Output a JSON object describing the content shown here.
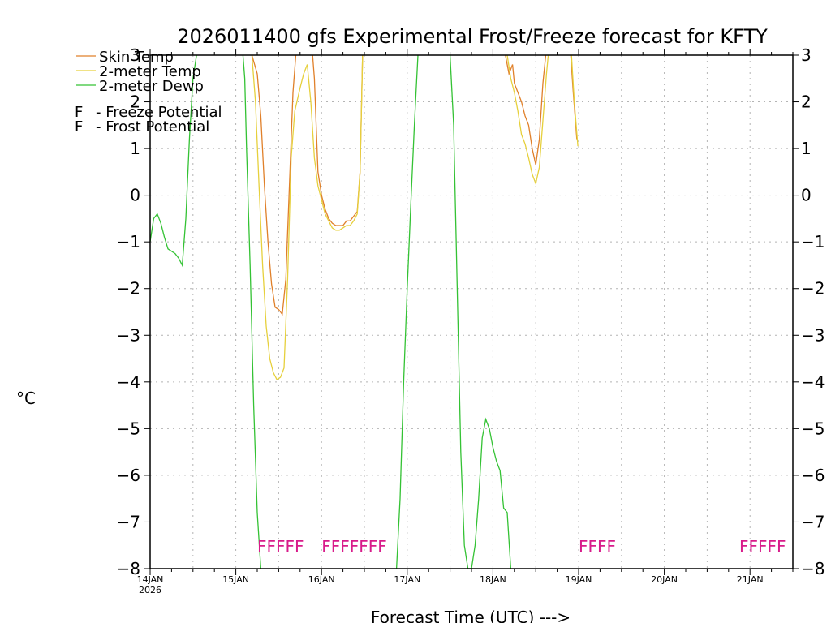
{
  "chart_data": {
    "type": "line",
    "title": "2026011400 gfs Experimental Frost/Freeze forecast for KFTY",
    "xlabel": "Forecast Time (UTC) --->",
    "ylabel": "°C",
    "ylim": [
      -8,
      3
    ],
    "yticks": [
      3,
      2,
      1,
      0,
      -1,
      -2,
      -3,
      -4,
      -5,
      -6,
      -7,
      -8
    ],
    "xlim_hours": [
      0,
      180
    ],
    "xticks": [
      {
        "hour": 0,
        "label": "14JAN",
        "sublabel": "2026"
      },
      {
        "hour": 24,
        "label": "15JAN"
      },
      {
        "hour": 48,
        "label": "16JAN"
      },
      {
        "hour": 72,
        "label": "17JAN"
      },
      {
        "hour": 96,
        "label": "18JAN"
      },
      {
        "hour": 120,
        "label": "19JAN"
      },
      {
        "hour": 144,
        "label": "20JAN"
      },
      {
        "hour": 168,
        "label": "21JAN"
      }
    ],
    "series": [
      {
        "name": "Skin Temp",
        "color": "#e0802a",
        "segments": [
          [
            [
              28.5,
              3.0
            ],
            [
              30,
              2.6
            ],
            [
              31,
              1.7
            ],
            [
              32,
              0.2
            ],
            [
              33,
              -1.0
            ],
            [
              34,
              -1.9
            ],
            [
              35,
              -2.4
            ],
            [
              36,
              -2.45
            ],
            [
              37,
              -2.55
            ],
            [
              38,
              -1.8
            ],
            [
              39,
              0.2
            ],
            [
              40,
              2.2
            ],
            [
              40.8,
              3.0
            ]
          ],
          [
            [
              45.5,
              3.0
            ],
            [
              46,
              2.5
            ],
            [
              47,
              0.5
            ],
            [
              48,
              0.0
            ],
            [
              49,
              -0.3
            ],
            [
              50,
              -0.5
            ],
            [
              51,
              -0.6
            ],
            [
              52,
              -0.65
            ],
            [
              53,
              -0.65
            ],
            [
              54,
              -0.65
            ],
            [
              55,
              -0.55
            ],
            [
              56,
              -0.55
            ],
            [
              57,
              -0.45
            ],
            [
              58,
              -0.35
            ],
            [
              58.8,
              0.5
            ],
            [
              59.5,
              3.0
            ]
          ],
          [
            [
              99.5,
              3.0
            ],
            [
              100.5,
              2.6
            ],
            [
              101.5,
              2.8
            ],
            [
              102,
              2.4
            ],
            [
              103,
              2.2
            ],
            [
              104,
              2.0
            ],
            [
              105,
              1.7
            ],
            [
              106,
              1.5
            ],
            [
              107,
              1.0
            ],
            [
              108,
              0.65
            ],
            [
              109,
              1.2
            ],
            [
              110,
              2.4
            ],
            [
              110.8,
              3.0
            ]
          ],
          [
            [
              117.8,
              3.0
            ],
            [
              118.5,
              2.2
            ],
            [
              119.5,
              1.2
            ]
          ]
        ]
      },
      {
        "name": "2-meter Temp",
        "color": "#e6d03c",
        "segments": [
          [
            [
              28.5,
              3.0
            ],
            [
              29.5,
              2.0
            ],
            [
              30.5,
              0.2
            ],
            [
              31.5,
              -1.5
            ],
            [
              32.5,
              -2.8
            ],
            [
              33.5,
              -3.5
            ],
            [
              34.5,
              -3.8
            ],
            [
              35.5,
              -3.95
            ],
            [
              36.5,
              -3.9
            ],
            [
              37.5,
              -3.7
            ],
            [
              38.5,
              -1.8
            ],
            [
              39.5,
              0.8
            ],
            [
              40.5,
              1.8
            ],
            [
              42,
              2.3
            ],
            [
              43,
              2.6
            ],
            [
              44,
              2.8
            ],
            [
              45,
              2.0
            ],
            [
              46,
              0.8
            ],
            [
              47,
              0.2
            ],
            [
              48,
              -0.1
            ],
            [
              49,
              -0.4
            ],
            [
              50,
              -0.55
            ],
            [
              51,
              -0.7
            ],
            [
              52,
              -0.75
            ],
            [
              53,
              -0.75
            ],
            [
              54,
              -0.7
            ],
            [
              55,
              -0.65
            ],
            [
              56,
              -0.65
            ],
            [
              57,
              -0.55
            ],
            [
              58,
              -0.4
            ],
            [
              58.8,
              0.5
            ],
            [
              59.5,
              3.0
            ]
          ],
          [
            [
              100,
              3.0
            ],
            [
              101,
              2.5
            ],
            [
              102,
              2.2
            ],
            [
              103,
              1.8
            ],
            [
              104,
              1.3
            ],
            [
              105,
              1.1
            ],
            [
              106,
              0.8
            ],
            [
              107,
              0.45
            ],
            [
              108,
              0.25
            ],
            [
              109,
              0.6
            ],
            [
              110,
              1.6
            ],
            [
              111,
              2.6
            ],
            [
              111.5,
              3.0
            ]
          ],
          [
            [
              118,
              3.0
            ],
            [
              118.8,
              2.0
            ],
            [
              119.8,
              1.05
            ]
          ]
        ]
      },
      {
        "name": "2-meter Dewp",
        "color": "#34c234",
        "segments": [
          [
            [
              0,
              -1.0
            ],
            [
              1,
              -0.5
            ],
            [
              2,
              -0.4
            ],
            [
              3,
              -0.6
            ],
            [
              4,
              -0.9
            ],
            [
              5,
              -1.15
            ],
            [
              6,
              -1.2
            ],
            [
              7,
              -1.25
            ],
            [
              8,
              -1.35
            ],
            [
              9,
              -1.5
            ],
            [
              10,
              -0.5
            ],
            [
              11,
              1.2
            ],
            [
              12,
              2.5
            ],
            [
              13,
              3.0
            ]
          ],
          [
            [
              26,
              3.0
            ],
            [
              26.5,
              2.5
            ],
            [
              27,
              1.0
            ],
            [
              28,
              -1.5
            ],
            [
              29,
              -4.5
            ],
            [
              30,
              -6.8
            ],
            [
              31,
              -8.0
            ]
          ],
          [
            [
              69,
              -8.0
            ],
            [
              70,
              -6.5
            ],
            [
              71,
              -4.0
            ],
            [
              72,
              -2.0
            ],
            [
              73,
              -0.2
            ],
            [
              74,
              1.5
            ],
            [
              75,
              3.0
            ]
          ],
          [
            [
              84,
              3.0
            ],
            [
              85,
              1.5
            ],
            [
              86,
              -2.0
            ],
            [
              87,
              -5.5
            ],
            [
              88,
              -7.5
            ],
            [
              89,
              -8.0
            ],
            [
              90,
              -8.0
            ],
            [
              91,
              -7.5
            ],
            [
              92,
              -6.5
            ],
            [
              93,
              -5.2
            ],
            [
              94,
              -4.8
            ],
            [
              95,
              -5.0
            ],
            [
              96,
              -5.4
            ],
            [
              97,
              -5.7
            ],
            [
              98,
              -5.9
            ],
            [
              99,
              -6.7
            ],
            [
              100,
              -6.8
            ],
            [
              101,
              -8.0
            ]
          ]
        ]
      }
    ],
    "legend": {
      "position": "top-left",
      "entries": [
        "Skin Temp",
        "2-meter Temp",
        "2-meter Dewp"
      ],
      "flag_entries": [
        {
          "symbol": "F",
          "label": "- Freeze Potential",
          "color": "#d81b8a"
        },
        {
          "symbol": "F",
          "label": "- Frost Potential",
          "color": "#5a5ae0"
        }
      ]
    },
    "freeze_flags": [
      {
        "start_hour": 30,
        "text": "FFFFF",
        "symbol": "F"
      },
      {
        "start_hour": 48,
        "text": "FFFFFFF",
        "symbol": "F"
      },
      {
        "start_hour": 120,
        "text": "FFFF",
        "symbol": "F"
      },
      {
        "start_hour": 165,
        "text": "FFFFF",
        "symbol": "F"
      }
    ]
  }
}
